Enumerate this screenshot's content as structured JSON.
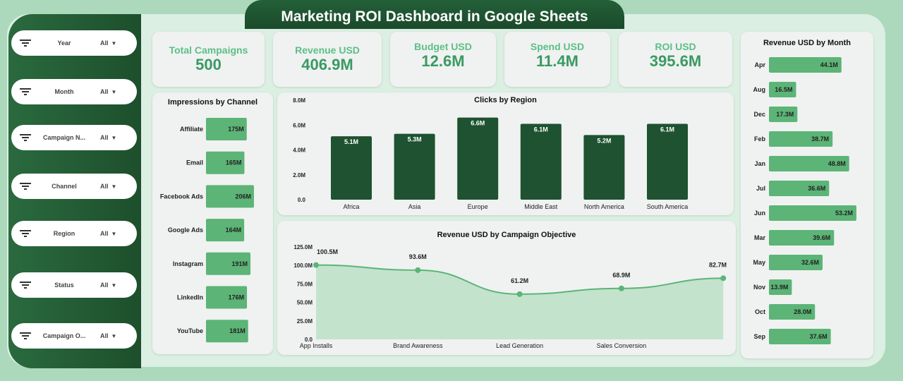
{
  "title": "Marketing ROI Dashboard in Google Sheets",
  "filters": [
    {
      "label": "Year",
      "value": "All"
    },
    {
      "label": "Month",
      "value": "All"
    },
    {
      "label": "Campaign N...",
      "value": "All"
    },
    {
      "label": "Channel",
      "value": "All"
    },
    {
      "label": "Region",
      "value": "All"
    },
    {
      "label": "Status",
      "value": "All"
    },
    {
      "label": "Campaign O...",
      "value": "All"
    }
  ],
  "kpis": [
    {
      "label": "Total Campaigns",
      "value": "500"
    },
    {
      "label": "Revenue USD",
      "value": "406.9M"
    },
    {
      "label": "Budget USD",
      "value": "12.6M"
    },
    {
      "label": "Spend USD",
      "value": "11.4M"
    },
    {
      "label": "ROI USD",
      "value": "395.6M"
    }
  ],
  "colors": {
    "bar_light": "#5cb477",
    "bar_dark": "#1e5230",
    "line": "#5cb477",
    "area": "#c3e3cd"
  },
  "chart_data": [
    {
      "type": "bar",
      "orientation": "horizontal",
      "title": "Impressions by Channel",
      "categories": [
        "Affiliate",
        "Email",
        "Facebook Ads",
        "Google Ads",
        "Instagram",
        "LinkedIn",
        "YouTube"
      ],
      "values": [
        175,
        165,
        206,
        164,
        191,
        176,
        181
      ],
      "labels": [
        "175M",
        "165M",
        "206M",
        "164M",
        "191M",
        "176M",
        "181M"
      ]
    },
    {
      "type": "bar",
      "title": "Clicks by Region",
      "categories": [
        "Africa",
        "Asia",
        "Europe",
        "Middle East",
        "North America",
        "South America"
      ],
      "values": [
        5.1,
        5.3,
        6.6,
        6.1,
        5.2,
        6.1
      ],
      "labels": [
        "5.1M",
        "5.3M",
        "6.6M",
        "6.1M",
        "5.2M",
        "6.1M"
      ],
      "ylim": [
        0,
        8
      ],
      "yticks": [
        "0.0",
        "2.0M",
        "4.0M",
        "6.0M",
        "8.0M"
      ]
    },
    {
      "type": "area",
      "title": "Revenue USD by Campaign Objective",
      "categories": [
        "App Installs",
        "Brand Awareness",
        "Lead Generation",
        "Sales Conversion",
        ""
      ],
      "values": [
        100.5,
        93.6,
        61.2,
        68.9,
        82.7
      ],
      "labels": [
        "100.5M",
        "93.6M",
        "61.2M",
        "68.9M",
        "82.7M"
      ],
      "ylim": [
        0,
        125
      ],
      "yticks": [
        "0.0",
        "25.0M",
        "50.0M",
        "75.0M",
        "100.0M",
        "125.0M"
      ]
    },
    {
      "type": "bar",
      "orientation": "horizontal",
      "title": "Revenue USD by Month",
      "categories": [
        "Apr",
        "Aug",
        "Dec",
        "Feb",
        "Jan",
        "Jul",
        "Jun",
        "Mar",
        "May",
        "Nov",
        "Oct",
        "Sep"
      ],
      "values": [
        44.1,
        16.5,
        17.3,
        38.7,
        48.8,
        36.6,
        53.2,
        39.6,
        32.6,
        13.9,
        28.0,
        37.6
      ],
      "labels": [
        "44.1M",
        "16.5M",
        "17.3M",
        "38.7M",
        "48.8M",
        "36.6M",
        "53.2M",
        "39.6M",
        "32.6M",
        "13.9M",
        "28.0M",
        "37.6M"
      ]
    }
  ]
}
